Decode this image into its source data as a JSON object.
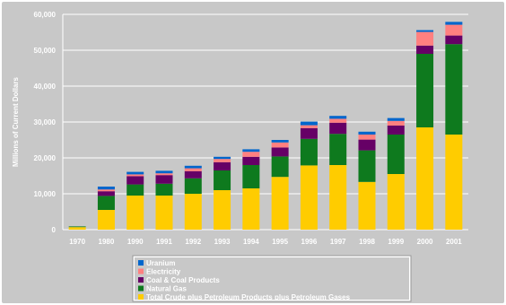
{
  "chart_data": {
    "type": "bar",
    "stacked": true,
    "ylabel": "Millions of Current Dollars",
    "xlabel": "",
    "ylim": [
      0,
      60000
    ],
    "yticks": [
      "0",
      "10,000",
      "20,000",
      "30,000",
      "40,000",
      "50,000",
      "60,000"
    ],
    "ytick_values": [
      0,
      10000,
      20000,
      30000,
      40000,
      50000,
      60000
    ],
    "grid": true,
    "legend_position": "bottom",
    "categories": [
      "1970",
      "1980",
      "1990",
      "1991",
      "1992",
      "1993",
      "1994",
      "1995",
      "1996",
      "1997",
      "1998",
      "1999",
      "2000",
      "2001"
    ],
    "series": [
      {
        "name": "Total Crude plus Petroleum Products plus Petroleum Gases",
        "color": "#ffcc00",
        "values": [
          700,
          5500,
          9500,
          9500,
          10000,
          11000,
          11500,
          14700,
          17900,
          18000,
          13300,
          15500,
          28500,
          26500
        ]
      },
      {
        "name": "Natural Gas",
        "color": "#0e7a1e",
        "values": [
          200,
          3900,
          3100,
          3300,
          4300,
          5500,
          6500,
          5700,
          7400,
          8700,
          8800,
          11000,
          20500,
          25200
        ]
      },
      {
        "name": "Coal & Coal Products",
        "color": "#660066",
        "values": [
          0,
          1300,
          2300,
          2400,
          2000,
          2300,
          2300,
          2500,
          3000,
          3100,
          3000,
          2500,
          2300,
          2400
        ]
      },
      {
        "name": "Electricity",
        "color": "#ff8080",
        "values": [
          0,
          500,
          500,
          500,
          800,
          900,
          1400,
          1400,
          800,
          1100,
          1400,
          1300,
          3800,
          3000
        ]
      },
      {
        "name": "Uranium",
        "color": "#0066cc",
        "values": [
          0,
          800,
          700,
          700,
          700,
          600,
          700,
          700,
          1000,
          800,
          800,
          800,
          500,
          800
        ]
      }
    ],
    "legend_order": [
      "Uranium",
      "Electricity",
      "Coal & Coal Products",
      "Natural Gas",
      "Total Crude plus Petroleum Products plus Petroleum Gases"
    ],
    "colors": {
      "background": "#c8c8c8",
      "gridline": "#ffffff",
      "text": "#ffffff",
      "legend_bg": "#ffffff"
    }
  }
}
